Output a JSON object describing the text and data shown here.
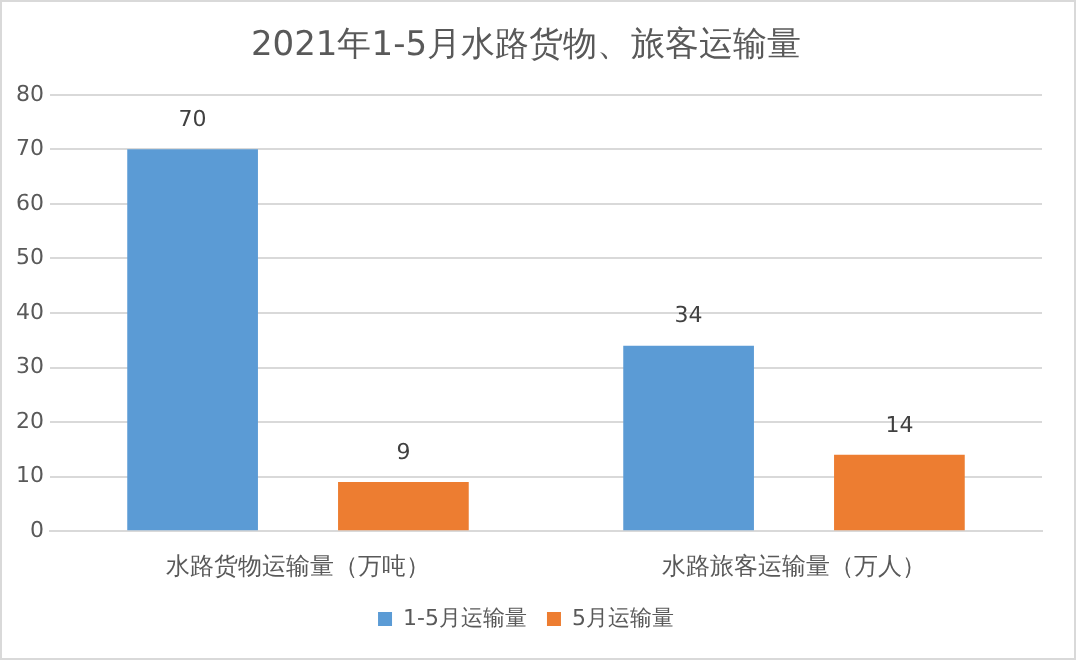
{
  "chart_data": {
    "type": "bar",
    "title": "2021年1-5月水路货物、旅客运输量",
    "categories": [
      "水路货物运输量（万吨）",
      "水路旅客运输量（万人）"
    ],
    "series": [
      {
        "name": "1-5月运输量",
        "color": "#5b9bd5",
        "values": [
          70,
          34
        ]
      },
      {
        "name": "5月运输量",
        "color": "#ed7d31",
        "values": [
          9,
          14
        ]
      }
    ],
    "ylim": [
      0,
      80
    ],
    "yticks": [
      0,
      10,
      20,
      30,
      40,
      50,
      60,
      70,
      80
    ],
    "grid": "y",
    "legend": "bottom",
    "data_labels": true
  }
}
